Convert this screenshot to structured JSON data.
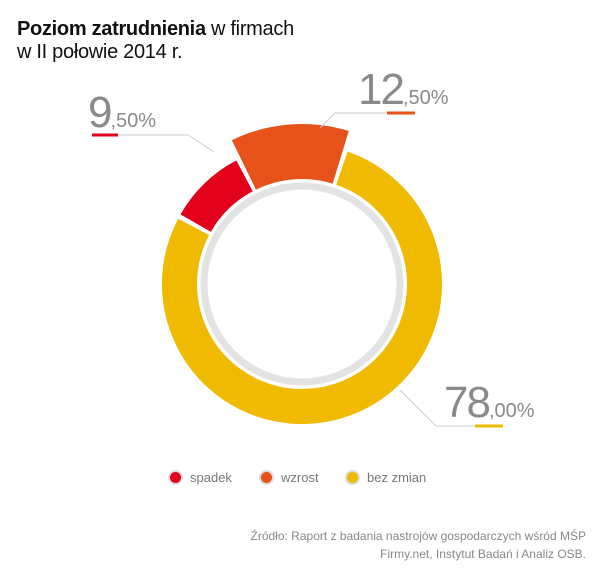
{
  "title": {
    "bold": "Poziom zatrudnienia",
    "rest": " w firmach",
    "line2": "w II połowie 2014 r."
  },
  "chart_data": {
    "type": "pie",
    "donut": true,
    "categories": [
      "spadek",
      "wzrost",
      "bez zmian"
    ],
    "values": [
      9.5,
      12.5,
      78.0
    ],
    "colors": [
      "#e2001a",
      "#e5531a",
      "#efba00"
    ],
    "labels": [
      {
        "int": "9",
        "dec": ",50%"
      },
      {
        "int": "12",
        "dec": ",50%"
      },
      {
        "int": "78",
        "dec": ",00%"
      }
    ],
    "legend_position": "bottom"
  },
  "source": {
    "line1": "Źródło: Raport z badania nastrojów gospodarczych wśród MŚP",
    "line2": "Firmy.net, Instytut Badań i Analiz OSB."
  }
}
